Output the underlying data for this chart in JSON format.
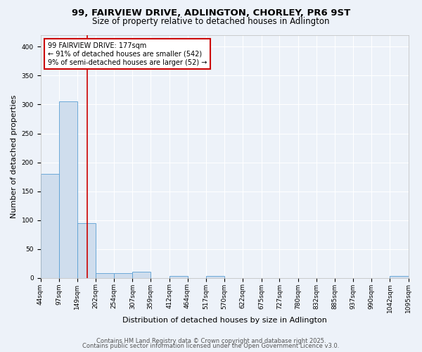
{
  "title_line1": "99, FAIRVIEW DRIVE, ADLINGTON, CHORLEY, PR6 9ST",
  "title_line2": "Size of property relative to detached houses in Adlington",
  "xlabel": "Distribution of detached houses by size in Adlington",
  "ylabel": "Number of detached properties",
  "bin_edges": [
    44,
    97,
    149,
    202,
    254,
    307,
    359,
    412,
    464,
    517,
    570,
    622,
    675,
    727,
    780,
    832,
    885,
    937,
    990,
    1042,
    1095
  ],
  "bar_heights": [
    180,
    305,
    95,
    8,
    8,
    10,
    0,
    3,
    0,
    3,
    0,
    0,
    0,
    0,
    0,
    0,
    0,
    0,
    0,
    3
  ],
  "bar_color": "#cfdded",
  "bar_edge_color": "#5a9fd4",
  "red_line_x": 177,
  "annotation_line1": "99 FAIRVIEW DRIVE: 177sqm",
  "annotation_line2": "← 91% of detached houses are smaller (542)",
  "annotation_line3": "9% of semi-detached houses are larger (52) →",
  "annotation_box_color": "#ffffff",
  "annotation_box_edge_color": "#cc0000",
  "ylim": [
    0,
    420
  ],
  "yticks": [
    0,
    50,
    100,
    150,
    200,
    250,
    300,
    350,
    400
  ],
  "footer_line1": "Contains HM Land Registry data © Crown copyright and database right 2025.",
  "footer_line2": "Contains public sector information licensed under the Open Government Licence v3.0.",
  "background_color": "#edf2f9",
  "grid_color": "#ffffff",
  "title_fontsize": 9.5,
  "subtitle_fontsize": 8.5,
  "axis_label_fontsize": 8,
  "tick_fontsize": 6.5,
  "annotation_fontsize": 7,
  "footer_fontsize": 6
}
